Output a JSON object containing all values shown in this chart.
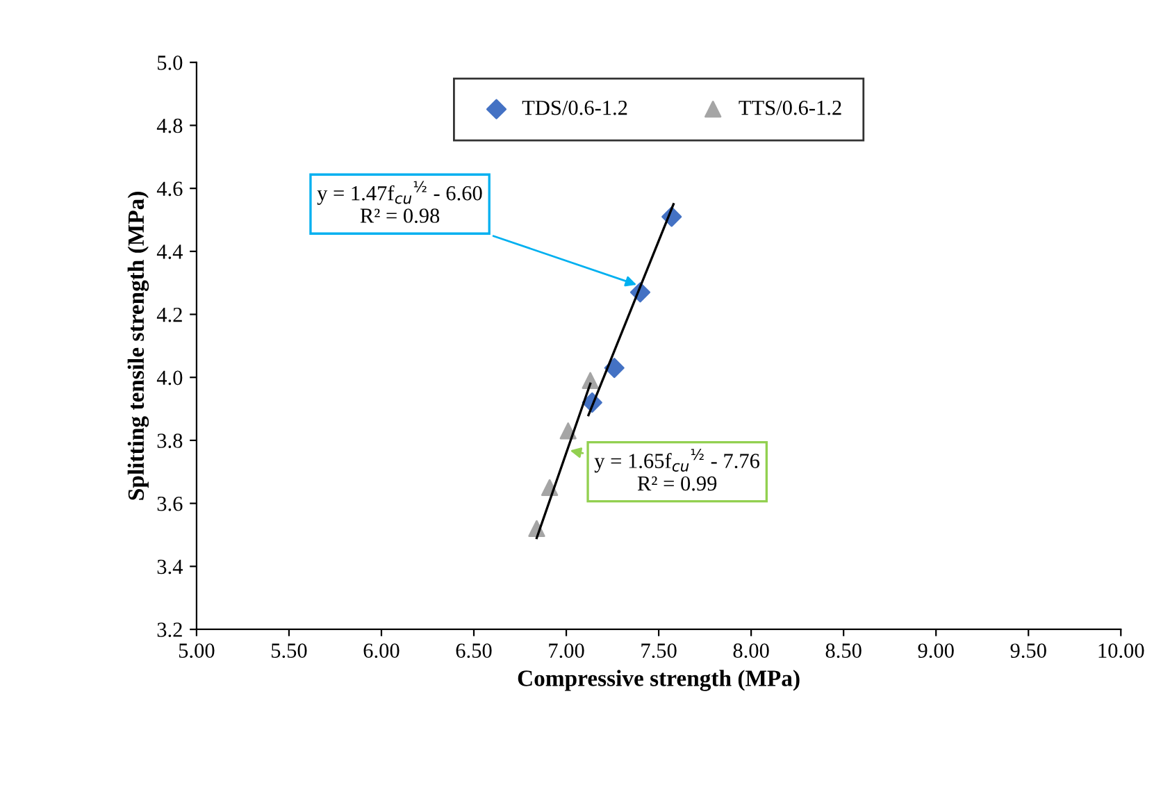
{
  "chart_data": {
    "type": "scatter",
    "xlabel": "Compressive strength (MPa)",
    "ylabel": "Splitting tensile strength (MPa)",
    "xlim": [
      5.0,
      10.0
    ],
    "xticks": [
      {
        "value": 5.0,
        "label": "5.00"
      },
      {
        "value": 5.5,
        "label": "5.50"
      },
      {
        "value": 6.0,
        "label": "6.00"
      },
      {
        "value": 6.5,
        "label": "6.50"
      },
      {
        "value": 7.0,
        "label": "7.00"
      },
      {
        "value": 7.5,
        "label": "7.50"
      },
      {
        "value": 8.0,
        "label": "8.00"
      },
      {
        "value": 8.5,
        "label": "8.50"
      },
      {
        "value": 9.0,
        "label": "9.00"
      },
      {
        "value": 9.5,
        "label": "9.50"
      },
      {
        "value": 10.0,
        "label": "10.00"
      }
    ],
    "ylim": [
      3.2,
      5.0
    ],
    "yticks": [
      3.2,
      3.4,
      3.6,
      3.8,
      {
        "value": 4.0,
        "label": "4.0"
      },
      4.2,
      4.4,
      4.6,
      4.8,
      {
        "value": 5.0,
        "label": "5.0"
      }
    ],
    "grid": false,
    "legend": "top",
    "series": [
      {
        "name": "TDS/0.6-1.2",
        "color": "#4472c4",
        "marker": "diamond",
        "x": [
          7.57,
          7.4,
          7.26,
          7.14
        ],
        "values": [
          4.51,
          4.27,
          4.03,
          3.92
        ]
      },
      {
        "name": "TTS/0.6-1.2",
        "color": "#a5a5a5",
        "marker": "triangle",
        "x": [
          7.13,
          7.01,
          6.91,
          6.84
        ],
        "values": [
          3.99,
          3.83,
          3.65,
          3.52
        ]
      },
      {
        "type": "line",
        "color": "#000000",
        "marker": "none",
        "x": [
          7.12,
          7.58
        ],
        "values": [
          3.88,
          4.55
        ]
      },
      {
        "type": "line",
        "color": "#000000",
        "marker": "none",
        "x": [
          6.84,
          7.13
        ],
        "values": [
          3.49,
          3.98
        ]
      }
    ],
    "annotations": [
      {
        "text": "y = 1.47f$_{cu}$$^{½}$ - 6.60\nR² = 0.98",
        "x": 7.4,
        "y": 4.29
      },
      {
        "text": "y = 1.65f$_{cu}$$^{½}$ - 7.76\nR² = 0.99",
        "x": 7.0,
        "y": 3.77
      }
    ]
  }
}
